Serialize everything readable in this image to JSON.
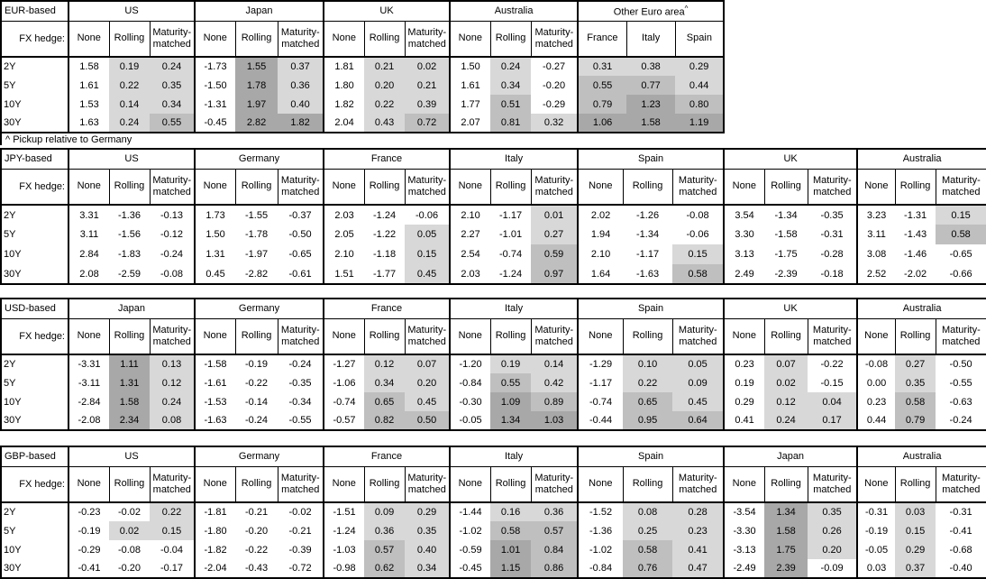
{
  "chart_data": {
    "type": "table",
    "footnote": "^ Pickup relative to Germany",
    "fx_hedge_label": "FX hedge:",
    "row_labels": [
      "2Y",
      "5Y",
      "10Y",
      "30Y"
    ],
    "hedge_subcols": [
      "None",
      "Rolling",
      "Maturity-matched"
    ],
    "colors": {
      "background": "#ffffff",
      "border": "#000000",
      "shade_light": "#d8d8d8",
      "shade_medium": "#bfbfbf",
      "shade_dark": "#a8a8a8"
    },
    "shading_rule": {
      "unshaded": "negative values and all 'None' columns",
      "light": "0 to 0.5",
      "medium": "0.5 to 1.0",
      "dark": "1.0 and above"
    },
    "sections": [
      {
        "label": "EUR-based",
        "groups": [
          {
            "name": "US",
            "cols": [
              "None",
              "Rolling",
              "Maturity-matched"
            ],
            "shade_start": 1,
            "rows": [
              [
                "1.58",
                "0.19",
                "0.24"
              ],
              [
                "1.61",
                "0.22",
                "0.35"
              ],
              [
                "1.53",
                "0.14",
                "0.34"
              ],
              [
                "1.63",
                "0.24",
                "0.55"
              ]
            ]
          },
          {
            "name": "Japan",
            "cols": [
              "None",
              "Rolling",
              "Maturity-matched"
            ],
            "shade_start": 1,
            "rows": [
              [
                "-1.73",
                "1.55",
                "0.37"
              ],
              [
                "-1.50",
                "1.78",
                "0.36"
              ],
              [
                "-1.31",
                "1.97",
                "0.40"
              ],
              [
                "-0.45",
                "2.82",
                "1.82"
              ]
            ]
          },
          {
            "name": "UK",
            "cols": [
              "None",
              "Rolling",
              "Maturity-matched"
            ],
            "shade_start": 1,
            "rows": [
              [
                "1.81",
                "0.21",
                "0.02"
              ],
              [
                "1.80",
                "0.20",
                "0.21"
              ],
              [
                "1.82",
                "0.22",
                "0.39"
              ],
              [
                "2.04",
                "0.43",
                "0.72"
              ]
            ]
          },
          {
            "name": "Australia",
            "cols": [
              "None",
              "Rolling",
              "Maturity-matched"
            ],
            "shade_start": 1,
            "rows": [
              [
                "1.50",
                "0.24",
                "-0.27"
              ],
              [
                "1.61",
                "0.34",
                "-0.20"
              ],
              [
                "1.77",
                "0.51",
                "-0.29"
              ],
              [
                "2.07",
                "0.81",
                "0.32"
              ]
            ]
          },
          {
            "name": "Other Euro area",
            "sup": "^",
            "cols": [
              "France",
              "Italy",
              "Spain"
            ],
            "shade_start": 0,
            "rows": [
              [
                "0.31",
                "0.38",
                "0.29"
              ],
              [
                "0.55",
                "0.77",
                "0.44"
              ],
              [
                "0.79",
                "1.23",
                "0.80"
              ],
              [
                "1.06",
                "1.58",
                "1.19"
              ]
            ]
          }
        ]
      },
      {
        "label": "JPY-based",
        "groups": [
          {
            "name": "US",
            "cols": [
              "None",
              "Rolling",
              "Maturity-matched"
            ],
            "shade_start": 1,
            "rows": [
              [
                "3.31",
                "-1.36",
                "-0.13"
              ],
              [
                "3.11",
                "-1.56",
                "-0.12"
              ],
              [
                "2.84",
                "-1.83",
                "-0.24"
              ],
              [
                "2.08",
                "-2.59",
                "-0.08"
              ]
            ]
          },
          {
            "name": "Germany",
            "cols": [
              "None",
              "Rolling",
              "Maturity-matched"
            ],
            "shade_start": 1,
            "rows": [
              [
                "1.73",
                "-1.55",
                "-0.37"
              ],
              [
                "1.50",
                "-1.78",
                "-0.50"
              ],
              [
                "1.31",
                "-1.97",
                "-0.65"
              ],
              [
                "0.45",
                "-2.82",
                "-0.61"
              ]
            ]
          },
          {
            "name": "France",
            "cols": [
              "None",
              "Rolling",
              "Maturity-matched"
            ],
            "shade_start": 1,
            "rows": [
              [
                "2.03",
                "-1.24",
                "-0.06"
              ],
              [
                "2.05",
                "-1.22",
                "0.05"
              ],
              [
                "2.10",
                "-1.18",
                "0.15"
              ],
              [
                "1.51",
                "-1.77",
                "0.45"
              ]
            ]
          },
          {
            "name": "Italy",
            "cols": [
              "None",
              "Rolling",
              "Maturity-matched"
            ],
            "shade_start": 1,
            "rows": [
              [
                "2.10",
                "-1.17",
                "0.01"
              ],
              [
                "2.27",
                "-1.01",
                "0.27"
              ],
              [
                "2.54",
                "-0.74",
                "0.59"
              ],
              [
                "2.03",
                "-1.24",
                "0.97"
              ]
            ]
          },
          {
            "name": "Spain",
            "cols": [
              "None",
              "Rolling",
              "Maturity-matched"
            ],
            "shade_start": 1,
            "rows": [
              [
                "2.02",
                "-1.26",
                "-0.08"
              ],
              [
                "1.94",
                "-1.34",
                "-0.06"
              ],
              [
                "2.10",
                "-1.17",
                "0.15"
              ],
              [
                "1.64",
                "-1.63",
                "0.58"
              ]
            ]
          },
          {
            "name": "UK",
            "cols": [
              "None",
              "Rolling",
              "Maturity-matched"
            ],
            "shade_start": 1,
            "rows": [
              [
                "3.54",
                "-1.34",
                "-0.35"
              ],
              [
                "3.30",
                "-1.58",
                "-0.31"
              ],
              [
                "3.13",
                "-1.75",
                "-0.28"
              ],
              [
                "2.49",
                "-2.39",
                "-0.18"
              ]
            ]
          },
          {
            "name": "Australia",
            "cols": [
              "None",
              "Rolling",
              "Maturity-matched"
            ],
            "shade_start": 1,
            "rows": [
              [
                "3.23",
                "-1.31",
                "0.15"
              ],
              [
                "3.11",
                "-1.43",
                "0.58"
              ],
              [
                "3.08",
                "-1.46",
                "-0.65"
              ],
              [
                "2.52",
                "-2.02",
                "-0.66"
              ]
            ]
          }
        ]
      },
      {
        "label": "USD-based",
        "groups": [
          {
            "name": "Japan",
            "cols": [
              "None",
              "Rolling",
              "Maturity-matched"
            ],
            "shade_start": 1,
            "rows": [
              [
                "-3.31",
                "1.11",
                "0.13"
              ],
              [
                "-3.11",
                "1.31",
                "0.12"
              ],
              [
                "-2.84",
                "1.58",
                "0.24"
              ],
              [
                "-2.08",
                "2.34",
                "0.08"
              ]
            ]
          },
          {
            "name": "Germany",
            "cols": [
              "None",
              "Rolling",
              "Maturity-matched"
            ],
            "shade_start": 1,
            "rows": [
              [
                "-1.58",
                "-0.19",
                "-0.24"
              ],
              [
                "-1.61",
                "-0.22",
                "-0.35"
              ],
              [
                "-1.53",
                "-0.14",
                "-0.34"
              ],
              [
                "-1.63",
                "-0.24",
                "-0.55"
              ]
            ]
          },
          {
            "name": "France",
            "cols": [
              "None",
              "Rolling",
              "Maturity-matched"
            ],
            "shade_start": 1,
            "rows": [
              [
                "-1.27",
                "0.12",
                "0.07"
              ],
              [
                "-1.06",
                "0.34",
                "0.20"
              ],
              [
                "-0.74",
                "0.65",
                "0.45"
              ],
              [
                "-0.57",
                "0.82",
                "0.50"
              ]
            ]
          },
          {
            "name": "Italy",
            "cols": [
              "None",
              "Rolling",
              "Maturity-matched"
            ],
            "shade_start": 1,
            "rows": [
              [
                "-1.20",
                "0.19",
                "0.14"
              ],
              [
                "-0.84",
                "0.55",
                "0.42"
              ],
              [
                "-0.30",
                "1.09",
                "0.89"
              ],
              [
                "-0.05",
                "1.34",
                "1.03"
              ]
            ]
          },
          {
            "name": "Spain",
            "cols": [
              "None",
              "Rolling",
              "Maturity-matched"
            ],
            "shade_start": 1,
            "rows": [
              [
                "-1.29",
                "0.10",
                "0.05"
              ],
              [
                "-1.17",
                "0.22",
                "0.09"
              ],
              [
                "-0.74",
                "0.65",
                "0.45"
              ],
              [
                "-0.44",
                "0.95",
                "0.64"
              ]
            ]
          },
          {
            "name": "UK",
            "cols": [
              "None",
              "Rolling",
              "Maturity-matched"
            ],
            "shade_start": 1,
            "rows": [
              [
                "0.23",
                "0.07",
                "-0.22"
              ],
              [
                "0.19",
                "0.02",
                "-0.15"
              ],
              [
                "0.29",
                "0.12",
                "0.04"
              ],
              [
                "0.41",
                "0.24",
                "0.17"
              ]
            ]
          },
          {
            "name": "Australia",
            "cols": [
              "None",
              "Rolling",
              "Maturity-matched"
            ],
            "shade_start": 1,
            "rows": [
              [
                "-0.08",
                "0.27",
                "-0.50"
              ],
              [
                "0.00",
                "0.35",
                "-0.55"
              ],
              [
                "0.23",
                "0.58",
                "-0.63"
              ],
              [
                "0.44",
                "0.79",
                "-0.24"
              ]
            ]
          }
        ]
      },
      {
        "label": "GBP-based",
        "groups": [
          {
            "name": "US",
            "cols": [
              "None",
              "Rolling",
              "Maturity-matched"
            ],
            "shade_start": 1,
            "rows": [
              [
                "-0.23",
                "-0.02",
                "0.22"
              ],
              [
                "-0.19",
                "0.02",
                "0.15"
              ],
              [
                "-0.29",
                "-0.08",
                "-0.04"
              ],
              [
                "-0.41",
                "-0.20",
                "-0.17"
              ]
            ]
          },
          {
            "name": "Germany",
            "cols": [
              "None",
              "Rolling",
              "Maturity-matched"
            ],
            "shade_start": 1,
            "rows": [
              [
                "-1.81",
                "-0.21",
                "-0.02"
              ],
              [
                "-1.80",
                "-0.20",
                "-0.21"
              ],
              [
                "-1.82",
                "-0.22",
                "-0.39"
              ],
              [
                "-2.04",
                "-0.43",
                "-0.72"
              ]
            ]
          },
          {
            "name": "France",
            "cols": [
              "None",
              "Rolling",
              "Maturity-matched"
            ],
            "shade_start": 1,
            "rows": [
              [
                "-1.51",
                "0.09",
                "0.29"
              ],
              [
                "-1.24",
                "0.36",
                "0.35"
              ],
              [
                "-1.03",
                "0.57",
                "0.40"
              ],
              [
                "-0.98",
                "0.62",
                "0.34"
              ]
            ]
          },
          {
            "name": "Italy",
            "cols": [
              "None",
              "Rolling",
              "Maturity-matched"
            ],
            "shade_start": 1,
            "rows": [
              [
                "-1.44",
                "0.16",
                "0.36"
              ],
              [
                "-1.02",
                "0.58",
                "0.57"
              ],
              [
                "-0.59",
                "1.01",
                "0.84"
              ],
              [
                "-0.45",
                "1.15",
                "0.86"
              ]
            ]
          },
          {
            "name": "Spain",
            "cols": [
              "None",
              "Rolling",
              "Maturity-matched"
            ],
            "shade_start": 1,
            "rows": [
              [
                "-1.52",
                "0.08",
                "0.28"
              ],
              [
                "-1.36",
                "0.25",
                "0.23"
              ],
              [
                "-1.02",
                "0.58",
                "0.41"
              ],
              [
                "-0.84",
                "0.76",
                "0.47"
              ]
            ]
          },
          {
            "name": "Japan",
            "cols": [
              "None",
              "Rolling",
              "Maturity-matched"
            ],
            "shade_start": 1,
            "rows": [
              [
                "-3.54",
                "1.34",
                "0.35"
              ],
              [
                "-3.30",
                "1.58",
                "0.26"
              ],
              [
                "-3.13",
                "1.75",
                "0.20"
              ],
              [
                "-2.49",
                "2.39",
                "-0.09"
              ]
            ]
          },
          {
            "name": "Australia",
            "cols": [
              "None",
              "Rolling",
              "Maturity-matched"
            ],
            "shade_start": 1,
            "rows": [
              [
                "-0.31",
                "0.03",
                "-0.31"
              ],
              [
                "-0.19",
                "0.15",
                "-0.41"
              ],
              [
                "-0.05",
                "0.29",
                "-0.68"
              ],
              [
                "0.03",
                "0.37",
                "-0.40"
              ]
            ]
          }
        ]
      }
    ]
  }
}
